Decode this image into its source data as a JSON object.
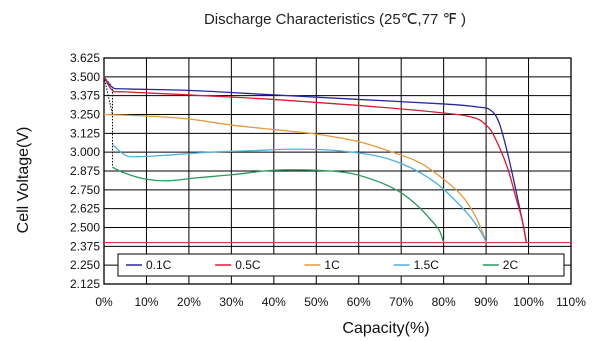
{
  "chart_data": {
    "type": "line",
    "title": "Discharge Characteristics (25℃,77 ℉ )",
    "xlabel": "Capacity(%)",
    "ylabel": "Cell  Voltage(V)",
    "xlim": [
      0,
      110
    ],
    "ylim": [
      2.125,
      3.625
    ],
    "grid": true,
    "legend_position": "bottom-inside",
    "x_ticks": [
      "0%",
      "10%",
      "20%",
      "30%",
      "40%",
      "50%",
      "60%",
      "70%",
      "80%",
      "90%",
      "100%",
      "110%"
    ],
    "y_ticks": [
      "3.625",
      "3.500",
      "3.375",
      "3.250",
      "3.125",
      "3.000",
      "2.875",
      "2.750",
      "2.625",
      "2.500",
      "2.375",
      "2.250",
      "2.125"
    ],
    "cutoff_line": {
      "y": 2.4,
      "color": "#e0304a"
    },
    "series": [
      {
        "name": "0.1C",
        "color": "#27289a",
        "points": [
          [
            0,
            3.5
          ],
          [
            2,
            3.43
          ],
          [
            5,
            3.42
          ],
          [
            20,
            3.41
          ],
          [
            40,
            3.38
          ],
          [
            60,
            3.35
          ],
          [
            80,
            3.32
          ],
          [
            88,
            3.3
          ],
          [
            91,
            3.28
          ],
          [
            93,
            3.2
          ],
          [
            95,
            3.0
          ],
          [
            97,
            2.75
          ],
          [
            98.5,
            2.55
          ],
          [
            99.5,
            2.4
          ]
        ]
      },
      {
        "name": "0.5C",
        "color": "#d81b35",
        "points": [
          [
            0,
            3.5
          ],
          [
            2,
            3.41
          ],
          [
            5,
            3.4
          ],
          [
            20,
            3.38
          ],
          [
            40,
            3.35
          ],
          [
            60,
            3.31
          ],
          [
            80,
            3.26
          ],
          [
            87,
            3.23
          ],
          [
            90,
            3.18
          ],
          [
            92,
            3.1
          ],
          [
            95,
            2.9
          ],
          [
            97,
            2.7
          ],
          [
            98.5,
            2.55
          ],
          [
            99.5,
            2.4
          ]
        ]
      },
      {
        "name": "1C",
        "color": "#e39a3a",
        "points": [
          [
            0,
            3.25
          ],
          [
            10,
            3.24
          ],
          [
            20,
            3.22
          ],
          [
            30,
            3.18
          ],
          [
            40,
            3.15
          ],
          [
            50,
            3.12
          ],
          [
            60,
            3.07
          ],
          [
            70,
            2.98
          ],
          [
            75,
            2.92
          ],
          [
            80,
            2.82
          ],
          [
            84,
            2.72
          ],
          [
            87,
            2.6
          ],
          [
            89,
            2.48
          ],
          [
            90,
            2.4
          ]
        ]
      },
      {
        "name": "1.5C",
        "color": "#4fb2dd",
        "points": [
          [
            2,
            3.05
          ],
          [
            5,
            2.98
          ],
          [
            8,
            2.97
          ],
          [
            15,
            2.98
          ],
          [
            25,
            3.0
          ],
          [
            35,
            3.01
          ],
          [
            45,
            3.02
          ],
          [
            55,
            3.01
          ],
          [
            65,
            2.97
          ],
          [
            72,
            2.9
          ],
          [
            78,
            2.8
          ],
          [
            82,
            2.7
          ],
          [
            86,
            2.58
          ],
          [
            89,
            2.46
          ],
          [
            90,
            2.4
          ]
        ]
      },
      {
        "name": "2C",
        "color": "#2a9a5a",
        "points": [
          [
            2,
            2.9
          ],
          [
            5,
            2.86
          ],
          [
            10,
            2.82
          ],
          [
            15,
            2.81
          ],
          [
            22,
            2.83
          ],
          [
            30,
            2.85
          ],
          [
            40,
            2.88
          ],
          [
            50,
            2.88
          ],
          [
            58,
            2.86
          ],
          [
            65,
            2.8
          ],
          [
            70,
            2.73
          ],
          [
            74,
            2.64
          ],
          [
            77,
            2.55
          ],
          [
            79,
            2.48
          ],
          [
            80,
            2.4
          ]
        ]
      }
    ],
    "lead_in": [
      {
        "color": "#000000",
        "points": [
          [
            0,
            3.5
          ],
          [
            2,
            3.43
          ],
          [
            2,
            3.41
          ],
          [
            2,
            3.05
          ],
          [
            2,
            2.9
          ]
        ]
      },
      {
        "color": "#000000",
        "points": [
          [
            0,
            3.5
          ],
          [
            2,
            3.25
          ]
        ]
      }
    ]
  }
}
